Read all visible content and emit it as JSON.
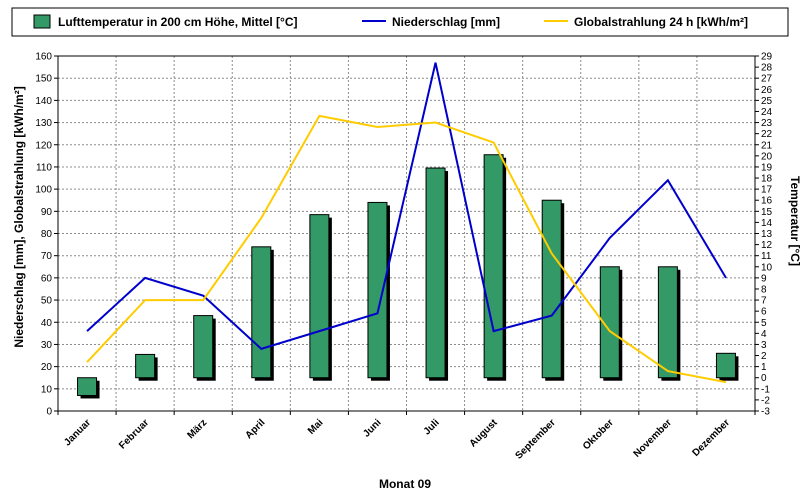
{
  "chart_data": {
    "type": "bar",
    "categories": [
      "Januar",
      "Februar",
      "März",
      "April",
      "Mai",
      "Juni",
      "Juli",
      "August",
      "September",
      "Oktober",
      "November",
      "Dezember"
    ],
    "series": [
      {
        "name": "Lufttemperatur in 200 cm Höhe, Mittel [°C]",
        "type": "bar",
        "axis": "right",
        "color": "#339966",
        "values": [
          -1.6,
          2.1,
          5.6,
          11.8,
          14.7,
          15.8,
          18.9,
          20.1,
          16.0,
          10.0,
          10.0,
          2.2
        ]
      },
      {
        "name": "Niederschlag [mm]",
        "type": "line",
        "axis": "left",
        "color": "#0000cc",
        "values": [
          36,
          60,
          52,
          28,
          36,
          44,
          157,
          36,
          43,
          78,
          104,
          60
        ]
      },
      {
        "name": "Globalstrahlung 24 h [kWh/m²]",
        "type": "line",
        "axis": "left",
        "color": "#ffcc00",
        "values": [
          22,
          50,
          50,
          87,
          133,
          128,
          130,
          121,
          71,
          36,
          18,
          13
        ]
      }
    ],
    "xlabel": "Monat 09",
    "ylabel_left": "Niederschlag [mm], Globalstrahlung [kWh/m²]",
    "ylabel_right": "Temperatur [°C]",
    "ylim_left": [
      0,
      160
    ],
    "ylim_right": [
      -3,
      29
    ],
    "left_ticks": [
      0,
      10,
      20,
      30,
      40,
      50,
      60,
      70,
      80,
      90,
      100,
      110,
      120,
      130,
      140,
      150,
      160
    ],
    "right_ticks": [
      -3,
      -2,
      -1,
      0,
      1,
      2,
      3,
      4,
      5,
      6,
      7,
      8,
      9,
      10,
      11,
      12,
      13,
      14,
      15,
      16,
      17,
      18,
      19,
      20,
      21,
      22,
      23,
      24,
      25,
      26,
      27,
      28,
      29
    ],
    "grid": true,
    "legend_position": "top"
  }
}
